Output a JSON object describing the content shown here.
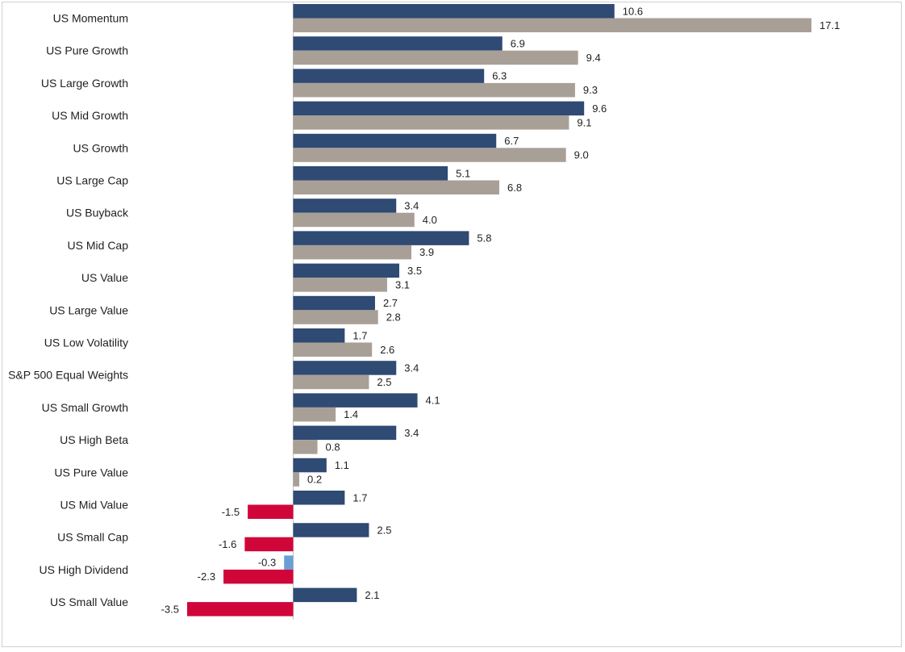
{
  "chart_data": {
    "type": "bar",
    "orientation": "horizontal",
    "title": "",
    "xlabel": "",
    "ylabel": "",
    "xlim": [
      -3.5,
      17.1
    ],
    "grid": false,
    "legend": "none",
    "colors": {
      "series1_positive": "#2f4a73",
      "series1_negative": "#6a9fd6",
      "series2_positive": "#a89f97",
      "series2_negative": "#d0063a",
      "text": "#1f1f1f",
      "axis": "#bfbfbf"
    },
    "categories": [
      "US Momentum",
      "US Pure Growth",
      "US Large Growth",
      "US Mid Growth",
      "US Growth",
      "US Large Cap",
      "US Buyback",
      "US Mid Cap",
      "US Value",
      "US Large Value",
      "US Low Volatility",
      "S&P 500 Equal Weights",
      "US Small Growth",
      "US High Beta",
      "US Pure Value",
      "US Mid Value",
      "US Small Cap",
      "US High Dividend",
      "US Small Value"
    ],
    "series": [
      {
        "values": [
          10.6,
          6.9,
          6.3,
          9.6,
          6.7,
          5.1,
          3.4,
          5.8,
          3.5,
          2.7,
          1.7,
          3.4,
          4.1,
          3.4,
          1.1,
          1.7,
          2.5,
          -0.3,
          2.1
        ],
        "labels": [
          "10.6",
          "6.9",
          "6.3",
          "9.6",
          "6.7",
          "5.1",
          "3.4",
          "5.8",
          "3.5",
          "2.7",
          "1.7",
          "3.4",
          "4.1",
          "3.4",
          "1.1",
          "1.7",
          "2.5",
          "-0.3",
          "2.1"
        ]
      },
      {
        "values": [
          17.1,
          9.4,
          9.3,
          9.1,
          9.0,
          6.8,
          4.0,
          3.9,
          3.1,
          2.8,
          2.6,
          2.5,
          1.4,
          0.8,
          0.2,
          -1.5,
          -1.6,
          -2.3,
          -3.5
        ],
        "labels": [
          "17.1",
          "9.4",
          "9.3",
          "9.1",
          "9.0",
          "6.8",
          "4.0",
          "3.9",
          "3.1",
          "2.8",
          "2.6",
          "2.5",
          "1.4",
          "0.8",
          "0.2",
          "-1.5",
          "-1.6",
          "-2.3",
          "-3.5"
        ]
      }
    ]
  }
}
